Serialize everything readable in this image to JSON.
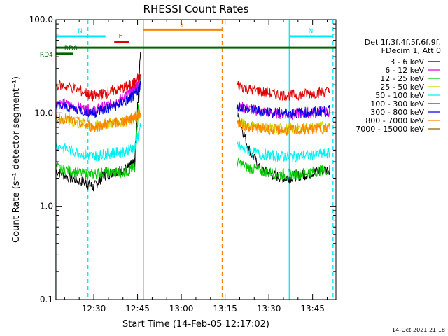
{
  "chart_data": {
    "type": "line",
    "title": "RHESSI Count Rates",
    "xlabel": "Start Time (14-Feb-05 12:17:02)",
    "ylabel": "Count Rate (s⁻¹ detector segment⁻¹)",
    "y_scale": "log",
    "ylim": [
      0.1,
      100.0
    ],
    "xlim": [
      "12:17:02",
      "13:53:00"
    ],
    "x_tick_labels": [
      "12:30",
      "12:45",
      "13:00",
      "13:15",
      "13:30",
      "13:45"
    ],
    "y_tick_labels": [
      "0.1",
      "1.0",
      "10.0",
      "100.0"
    ],
    "grid": false,
    "legend_placement": "right",
    "legend_header": [
      "Det 1f,3f,4f,5f,6f,9f,",
      "FDecim 1, Att 0"
    ],
    "series": [
      {
        "name": "3 - 6 keV",
        "color": "#000000",
        "segments": [
          {
            "x": [
              "12:17",
              "12:22",
              "12:27",
              "12:30",
              "12:33",
              "12:36",
              "12:39",
              "12:42",
              "12:44",
              "12:46"
            ],
            "y": [
              2.4,
              2.0,
              1.8,
              1.6,
              2.1,
              2.3,
              2.4,
              2.6,
              3.0,
              45.0
            ]
          },
          {
            "x": [
              "13:19",
              "13:23",
              "13:27",
              "13:31",
              "13:35",
              "13:39",
              "13:43",
              "13:47",
              "13:51"
            ],
            "y": [
              10.5,
              4.2,
              2.5,
              2.2,
              2.0,
              2.1,
              2.2,
              2.4,
              2.5
            ]
          }
        ]
      },
      {
        "name": "6 - 12 keV",
        "color": "#e100e1",
        "segments": [
          {
            "x": [
              "12:17",
              "12:22",
              "12:27",
              "12:30",
              "12:33",
              "12:36",
              "12:39",
              "12:42",
              "12:44",
              "12:46"
            ],
            "y": [
              13.0,
              12.0,
              11.0,
              10.5,
              11.5,
              12.5,
              14.0,
              16.0,
              18.0,
              25.0
            ]
          },
          {
            "x": [
              "13:19",
              "13:23",
              "13:27",
              "13:31",
              "13:35",
              "13:39",
              "13:43",
              "13:47",
              "13:51"
            ],
            "y": [
              12.0,
              11.0,
              10.5,
              10.0,
              9.8,
              9.8,
              10.0,
              10.2,
              10.4
            ]
          }
        ]
      },
      {
        "name": "12 - 25 keV",
        "color": "#00c800",
        "segments": [
          {
            "x": [
              "12:17",
              "12:22",
              "12:27",
              "12:30",
              "12:33",
              "12:36",
              "12:39",
              "12:42",
              "12:44",
              "12:46"
            ],
            "y": [
              2.6,
              2.4,
              2.2,
              2.2,
              2.3,
              2.3,
              2.3,
              2.4,
              2.6,
              25.0
            ]
          },
          {
            "x": [
              "13:19",
              "13:23",
              "13:27",
              "13:31",
              "13:35",
              "13:39",
              "13:43",
              "13:47",
              "13:51"
            ],
            "y": [
              3.0,
              2.6,
              2.4,
              2.3,
              2.2,
              2.2,
              2.3,
              2.4,
              2.5
            ]
          }
        ]
      },
      {
        "name": "25 - 50 keV",
        "color": "#d2d200",
        "segments": [
          {
            "x": [
              "12:17",
              "12:22",
              "12:27",
              "12:30",
              "12:33",
              "12:36",
              "12:39",
              "12:42",
              "12:44",
              "12:46"
            ],
            "y": [
              8.5,
              8.0,
              7.5,
              7.2,
              7.6,
              7.8,
              8.0,
              8.2,
              8.6,
              10.0
            ]
          },
          {
            "x": [
              "13:19",
              "13:23",
              "13:27",
              "13:31",
              "13:35",
              "13:39",
              "13:43",
              "13:47",
              "13:51"
            ],
            "y": [
              8.0,
              7.4,
              7.0,
              6.8,
              6.8,
              6.8,
              7.0,
              7.0,
              7.2
            ]
          }
        ]
      },
      {
        "name": "50 - 100 keV",
        "color": "#00f0f0",
        "segments": [
          {
            "x": [
              "12:17",
              "12:22",
              "12:27",
              "12:30",
              "12:33",
              "12:36",
              "12:39",
              "12:42",
              "12:44",
              "12:46"
            ],
            "y": [
              4.5,
              4.0,
              3.6,
              3.4,
              3.6,
              3.7,
              3.8,
              4.0,
              4.3,
              7.0
            ]
          },
          {
            "x": [
              "13:19",
              "13:23",
              "13:27",
              "13:31",
              "13:35",
              "13:39",
              "13:43",
              "13:47",
              "13:51"
            ],
            "y": [
              4.5,
              3.9,
              3.6,
              3.5,
              3.4,
              3.4,
              3.5,
              3.6,
              3.7
            ]
          }
        ]
      },
      {
        "name": "100 - 300 keV",
        "color": "#e10000",
        "segments": [
          {
            "x": [
              "12:17",
              "12:22",
              "12:27",
              "12:30",
              "12:33",
              "12:36",
              "12:39",
              "12:42",
              "12:44",
              "12:46"
            ],
            "y": [
              20.0,
              19.0,
              16.5,
              15.0,
              16.0,
              17.0,
              18.0,
              19.5,
              21.0,
              25.0
            ]
          },
          {
            "x": [
              "13:19",
              "13:23",
              "13:27",
              "13:31",
              "13:35",
              "13:39",
              "13:43",
              "13:47",
              "13:51"
            ],
            "y": [
              20.0,
              18.0,
              17.0,
              16.0,
              15.5,
              15.5,
              16.0,
              16.5,
              17.0
            ]
          }
        ]
      },
      {
        "name": "300 - 800 keV",
        "color": "#0000e1",
        "segments": [
          {
            "x": [
              "12:17",
              "12:22",
              "12:27",
              "12:30",
              "12:33",
              "12:36",
              "12:39",
              "12:42",
              "12:44",
              "12:46"
            ],
            "y": [
              12.0,
              11.5,
              10.5,
              10.0,
              10.8,
              11.5,
              12.5,
              14.0,
              15.5,
              20.0
            ]
          },
          {
            "x": [
              "13:19",
              "13:23",
              "13:27",
              "13:31",
              "13:35",
              "13:39",
              "13:43",
              "13:47",
              "13:51"
            ],
            "y": [
              12.0,
              11.0,
              10.5,
              10.2,
              10.0,
              10.0,
              10.2,
              10.4,
              10.6
            ]
          }
        ]
      },
      {
        "name": "800 - 7000 keV",
        "color": "#ff8200",
        "segments": [
          {
            "x": [
              "12:17",
              "12:22",
              "12:27",
              "12:30",
              "12:33",
              "12:36",
              "12:39",
              "12:42",
              "12:44",
              "12:46"
            ],
            "y": [
              9.0,
              8.5,
              7.5,
              7.0,
              7.5,
              7.8,
              8.0,
              8.5,
              9.0,
              10.0
            ]
          },
          {
            "x": [
              "13:19",
              "13:23",
              "13:27",
              "13:31",
              "13:35",
              "13:39",
              "13:43",
              "13:47",
              "13:51"
            ],
            "y": [
              7.8,
              7.2,
              6.8,
              6.6,
              6.5,
              6.5,
              6.7,
              6.8,
              7.0
            ]
          }
        ]
      },
      {
        "name": "7000 - 15000 keV",
        "color": "#8c6400",
        "segments": []
      }
    ],
    "annotations": [
      {
        "label": "RD0",
        "color": "#006400",
        "x_start": "12:17",
        "x_end": "13:53",
        "y": 50
      },
      {
        "label": "RD4",
        "color": "#006400",
        "x_start": "12:17",
        "x_end": "12:23",
        "y": 43
      },
      {
        "label": "F",
        "color": "#e10000",
        "x_start": "12:37",
        "x_end": "12:42",
        "y": 58
      },
      {
        "label": "N",
        "color": "#00e6ff",
        "x_start": "12:17",
        "x_end": "12:34",
        "y": 66
      },
      {
        "label": "N",
        "color": "#00e6ff",
        "x_start": "13:37",
        "x_end": "13:52",
        "y": 66
      },
      {
        "label": "S",
        "color": "#ff8200",
        "x_start": "12:47",
        "x_end": "13:14",
        "y": 78
      }
    ],
    "vertical_lines": [
      {
        "x": "12:17",
        "color": "#00e6ff",
        "style": "solid"
      },
      {
        "x": "12:28",
        "color": "#00e6ff",
        "style": "dashed"
      },
      {
        "x": "12:47",
        "color": "#ff8200",
        "style": "solid"
      },
      {
        "x": "13:14",
        "color": "#ff8200",
        "style": "dashed"
      },
      {
        "x": "13:37",
        "color": "#00e6ff",
        "style": "solid"
      },
      {
        "x": "13:52",
        "color": "#00e6ff",
        "style": "dashed"
      }
    ],
    "footer_timestamp": "14-Oct-2021 21:18"
  }
}
